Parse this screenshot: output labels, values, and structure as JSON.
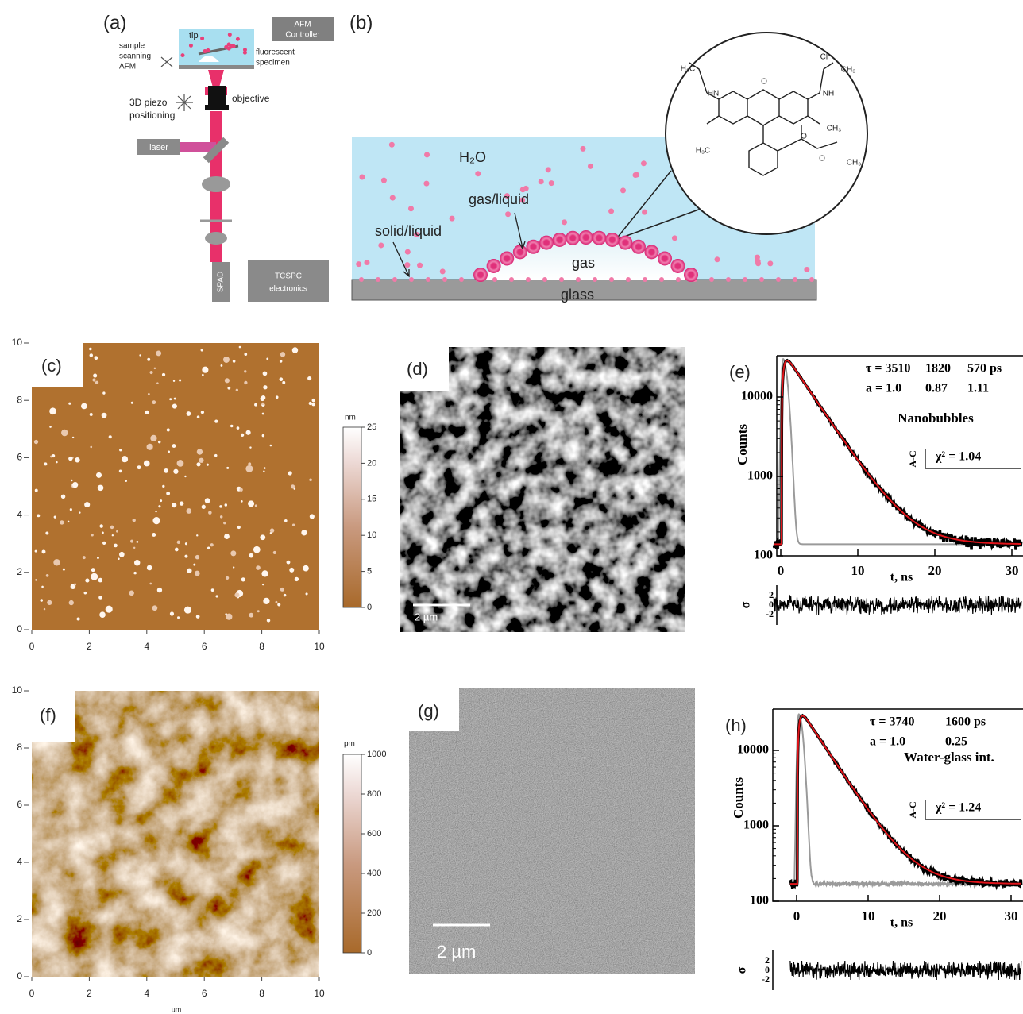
{
  "a": {
    "label": "(a)",
    "tip": "tip",
    "controller": [
      "AFM",
      "Controller"
    ],
    "scanning": [
      "sample",
      "scanning",
      "AFM"
    ],
    "specimen": [
      "fluorescent",
      "specimen"
    ],
    "piezo": [
      "3D piezo",
      "positioning"
    ],
    "objective": "objective",
    "laser": "laser",
    "spad": "SPAD",
    "tcspc": [
      "TCSPC",
      "electronics"
    ]
  },
  "b": {
    "label": "(b)",
    "water": "H₂O",
    "gas_liquid": "gas/liquid",
    "solid_liquid": "solid/liquid",
    "gas": "gas",
    "glass": "glass",
    "molecule": [
      "H₃C",
      "HN",
      "Cl⁻",
      "CH₃",
      "NH",
      "H₃C",
      "O",
      "CH₃",
      "O",
      "O",
      "CH₃"
    ]
  },
  "c": {
    "label": "(c)",
    "yticks": [
      0,
      2,
      4,
      6,
      8,
      10
    ],
    "xticks": [
      0,
      2,
      4,
      6,
      8,
      10
    ],
    "colorbar_unit": "nm",
    "colorbar_ticks": [
      0,
      5,
      10,
      15,
      20,
      25
    ]
  },
  "d": {
    "label": "(d)",
    "scale_bar": "2 µm"
  },
  "e": {
    "label": "(e)",
    "tau": [
      "τ = 3510",
      "1820",
      "570 ps"
    ],
    "amplitude": [
      "a = 1.0",
      "0.87",
      "1.11"
    ],
    "sample": "Nanobubbles",
    "residual_axis": "A-C",
    "chi2": "χ² = 1.04",
    "ylabel": "Counts",
    "yticks": [
      100,
      1000,
      10000
    ],
    "xticks": [
      0,
      10,
      20,
      30
    ],
    "xlabel": "t, ns",
    "residual_label": "σ",
    "residual_ticks": [
      2,
      0,
      -2
    ]
  },
  "f": {
    "label": "(f)",
    "yticks": [
      0,
      2,
      4,
      6,
      8,
      10
    ],
    "xticks": [
      0,
      2,
      4,
      6,
      8,
      10
    ],
    "xunit": "um",
    "colorbar_unit": "pm",
    "colorbar_ticks": [
      0,
      200,
      400,
      600,
      800,
      1000
    ]
  },
  "g": {
    "label": "(g)",
    "scale_bar": "2 µm"
  },
  "h": {
    "label": "(h)",
    "tau": [
      "τ = 3740",
      "1600 ps"
    ],
    "amplitude": [
      "a = 1.0",
      "0.25"
    ],
    "sample": "Water-glass int.",
    "residual_axis": "A-C",
    "chi2": "χ² = 1.24",
    "ylabel": "Counts",
    "yticks": [
      100,
      1000,
      10000
    ],
    "xticks": [
      0,
      10,
      20,
      30
    ],
    "xlabel": "t, ns",
    "residual_label": "σ",
    "residual_ticks": [
      2,
      0,
      -2
    ]
  }
}
